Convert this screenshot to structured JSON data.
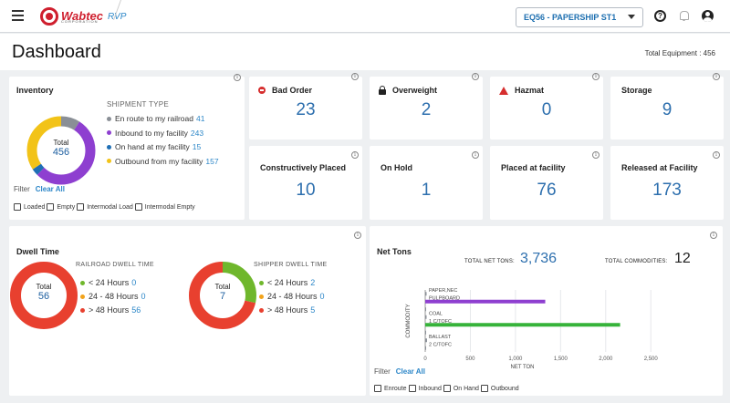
{
  "header": {
    "brand": "Wabtec",
    "brand_sub": "CORPORATION",
    "app_name": "RVP",
    "facility_selected": "EQ56 - PAPERSHIP ST1"
  },
  "page": {
    "title": "Dashboard",
    "total_equipment_label": "Total Equipment : 456"
  },
  "inventory": {
    "title": "Inventory",
    "shipment_type_label": "SHIPMENT TYPE",
    "total_label": "Total",
    "total_value": "456",
    "items": [
      {
        "label": "En route to my railroad",
        "value": "41",
        "color": "#8a8f96"
      },
      {
        "label": "Inbound to my facility",
        "value": "243",
        "color": "#8e3fd0"
      },
      {
        "label": "On hand at my facility",
        "value": "15",
        "color": "#1f6fb5"
      },
      {
        "label": "Outbound from my facility",
        "value": "157",
        "color": "#f2c318"
      }
    ],
    "filter_label": "Filter",
    "clear_all": "Clear All",
    "checkboxes": [
      "Loaded",
      "Empty",
      "Intermodal Load",
      "Intermodal Empty"
    ]
  },
  "stats": [
    {
      "label": "Bad Order",
      "value": "23",
      "icon": "bad-order-icon"
    },
    {
      "label": "Overweight",
      "value": "2",
      "icon": "lock-icon"
    },
    {
      "label": "Hazmat",
      "value": "0",
      "icon": "hazmat-icon"
    },
    {
      "label": "Storage",
      "value": "9",
      "icon": ""
    },
    {
      "label": "Constructively Placed",
      "value": "10"
    },
    {
      "label": "On Hold",
      "value": "1"
    },
    {
      "label": "Placed at facility",
      "value": "76"
    },
    {
      "label": "Released at Facility",
      "value": "173"
    }
  ],
  "dwell": {
    "title": "Dwell Time",
    "railroad": {
      "heading": "RAILROAD DWELL TIME",
      "total_label": "Total",
      "total_value": "56",
      "items": [
        {
          "label": "< 24 Hours",
          "value": "0",
          "color": "#6fb72c"
        },
        {
          "label": "24 - 48 Hours",
          "value": "0",
          "color": "#f2a31b"
        },
        {
          "label": "> 48 Hours",
          "value": "56",
          "color": "#e8402f"
        }
      ]
    },
    "shipper": {
      "heading": "SHIPPER DWELL TIME",
      "total_label": "Total",
      "total_value": "7",
      "items": [
        {
          "label": "< 24 Hours",
          "value": "2",
          "color": "#6fb72c"
        },
        {
          "label": "24 - 48 Hours",
          "value": "0",
          "color": "#f2a31b"
        },
        {
          "label": "> 48 Hours",
          "value": "5",
          "color": "#e8402f"
        }
      ]
    }
  },
  "nettons": {
    "title": "Net Tons",
    "total_label": "TOTAL NET TONS:",
    "total_value": "3,736",
    "commodities_label": "TOTAL COMMODITIES:",
    "commodities_value": "12",
    "filter_label": "Filter",
    "clear_all": "Clear All",
    "checkboxes": [
      "Enroute",
      "Inbound",
      "On Hand",
      "Outbound"
    ]
  },
  "chart_data": {
    "type": "bar",
    "orientation": "horizontal",
    "xlabel": "NET TON",
    "ylabel": "COMMODITY",
    "xlim": [
      0,
      2700
    ],
    "xticks": [
      "0",
      "500",
      "1,000",
      "1,500",
      "2,000",
      "2,500"
    ],
    "xtick_values": [
      0,
      500,
      1000,
      1500,
      2000,
      2500
    ],
    "categories": [
      "PAPER,NEC",
      "PULPBOARD",
      "",
      "COAL",
      "1 C/TOFC",
      "",
      "BALLAST",
      "2 C/TOFC"
    ],
    "values": [
      15,
      1330,
      10,
      15,
      2160,
      10,
      20,
      10
    ],
    "colors": [
      "#8a8f96",
      "#8e3fd0",
      "#8a8f96",
      "#8a8f96",
      "#36b33a",
      "#8a8f96",
      "#8a8f96",
      "#8a8f96"
    ],
    "grid": true
  }
}
